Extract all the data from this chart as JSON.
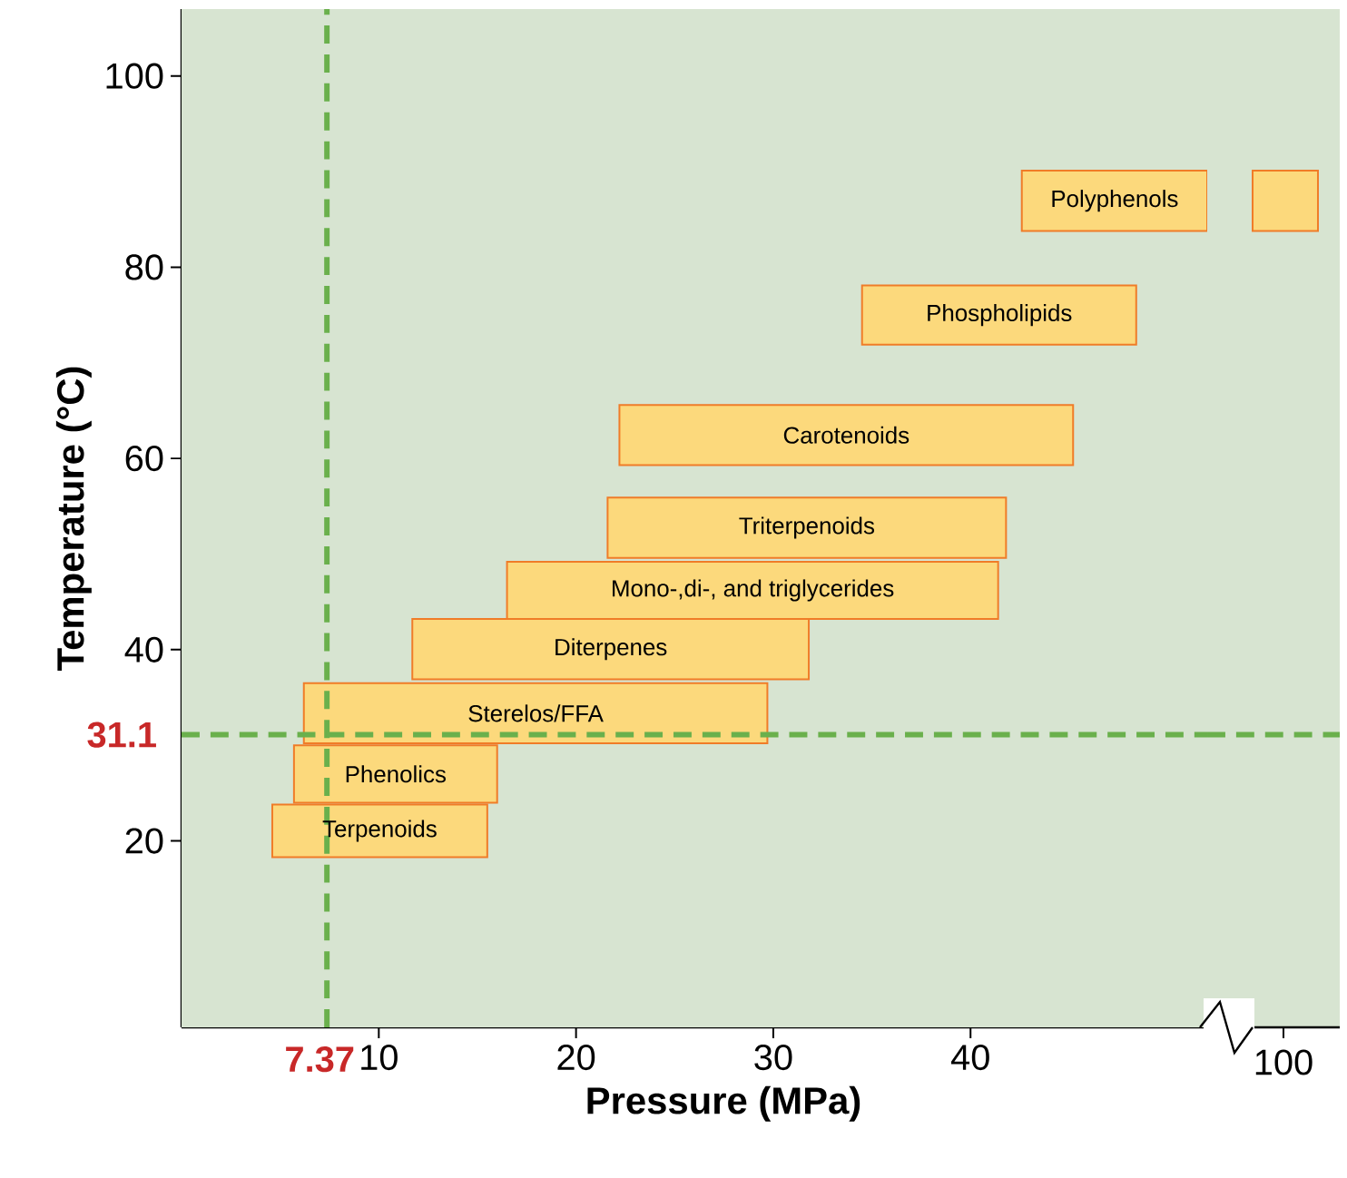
{
  "chart_data": {
    "type": "area",
    "xlabel": "Pressure (MPa)",
    "ylabel": "Temperature (°C)",
    "xlim": [
      0,
      52
    ],
    "ylim": [
      0.5,
      107
    ],
    "xticks": [
      10,
      20,
      30,
      40
    ],
    "yticks": [
      20,
      40,
      60,
      80,
      100
    ],
    "annotations": [
      "100",
      "Polyphenols",
      "Phospholipids",
      "Carotenoids",
      "Triterpenoids",
      "Mono-,di-, and triglycerides",
      "Diterpenes",
      "Sterelos/FFA",
      "Phenolics",
      "Terpenoids"
    ],
    "ref_lines": [
      {
        "axis": "x",
        "value": 7.37,
        "label": "7.37",
        "color": "#6ab04c",
        "line_style": "dashed"
      },
      {
        "axis": "y",
        "value": 31.1,
        "label": "31.1",
        "color": "#6ab04c",
        "line_style": "dashed"
      }
    ],
    "series": [
      {
        "color": "#fcd97c",
        "x": [
          42.6,
          52
        ],
        "values": [
          null,
          null
        ],
        "lower": [
          83.8,
          83.8
        ],
        "upper": [
          90.1,
          90.1
        ]
      },
      {
        "color": "#fcd97c",
        "x": [
          34.5,
          48.4
        ],
        "values": [
          null,
          null
        ],
        "lower": [
          71.9,
          71.9
        ],
        "upper": [
          78.1,
          78.1
        ]
      },
      {
        "color": "#fcd97c",
        "x": [
          22.2,
          45.2
        ],
        "values": [
          null,
          null
        ],
        "lower": [
          59.3,
          59.3
        ],
        "upper": [
          65.6,
          65.6
        ]
      },
      {
        "color": "#fcd97c",
        "x": [
          21.6,
          41.8
        ],
        "values": [
          null,
          null
        ],
        "lower": [
          49.6,
          49.6
        ],
        "upper": [
          55.9,
          55.9
        ]
      },
      {
        "color": "#fcd97c",
        "x": [
          16.5,
          41.4
        ],
        "values": [
          null,
          null
        ],
        "lower": [
          43.2,
          43.2
        ],
        "upper": [
          49.2,
          49.2
        ]
      },
      {
        "color": "#fcd97c",
        "x": [
          11.7,
          31.8
        ],
        "values": [
          null,
          null
        ],
        "lower": [
          36.9,
          36.9
        ],
        "upper": [
          43.2,
          43.2
        ]
      },
      {
        "color": "#fcd97c",
        "x": [
          6.2,
          29.7
        ],
        "values": [
          null,
          null
        ],
        "lower": [
          30.2,
          30.2
        ],
        "upper": [
          36.5,
          36.5
        ]
      },
      {
        "color": "#fcd97c",
        "x": [
          5.7,
          16.0
        ],
        "values": [
          null,
          null
        ],
        "lower": [
          24.0,
          24.0
        ],
        "upper": [
          30.0,
          30.0
        ]
      },
      {
        "color": "#fcd97c",
        "x": [
          4.6,
          15.5
        ],
        "values": [
          null,
          null
        ],
        "lower": [
          18.3,
          18.3
        ],
        "upper": [
          23.8,
          23.8
        ]
      }
    ]
  }
}
